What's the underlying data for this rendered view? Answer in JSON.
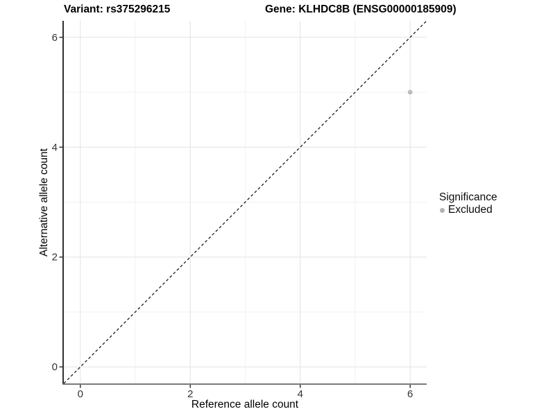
{
  "titles": {
    "variant": "Variant: rs375296215",
    "gene": "Gene: KLHDC8B (ENSG00000185909)"
  },
  "chart_data": {
    "type": "scatter",
    "title_left": "Variant: rs375296215",
    "title_right": "Gene: KLHDC8B (ENSG00000185909)",
    "xlabel": "Reference allele count",
    "ylabel": "Alternative allele count",
    "xlim": [
      -0.3,
      6.3
    ],
    "ylim": [
      -0.3,
      6.3
    ],
    "x_ticks": [
      0,
      2,
      4,
      6
    ],
    "y_ticks": [
      0,
      2,
      4,
      6
    ],
    "x_minor_ticks": [
      1,
      3,
      5
    ],
    "y_minor_ticks": [
      1,
      3,
      5
    ],
    "grid": "on",
    "reference_line": {
      "kind": "identity",
      "slope": 1,
      "intercept": 0,
      "style": "dashed",
      "color": "#1a1a1a"
    },
    "series": [
      {
        "name": "Excluded",
        "marker": "circle",
        "color": "#bcbcbc",
        "points": [
          {
            "x": 6,
            "y": 5
          }
        ]
      }
    ],
    "legend": {
      "position": "right",
      "title": "Significance",
      "items": [
        {
          "label": "Excluded",
          "marker": "circle",
          "color": "#b3b3b3"
        }
      ]
    }
  },
  "colors": {
    "background": "#ffffff",
    "grid_major": "#e7e7e7",
    "grid_minor": "#f1f1f1",
    "axis_line_left": "#2f2f2f",
    "axis_line_bottom": "#7a7a7a",
    "tick_mark": "#333333",
    "tick_label": "#333333",
    "point": "#bcbcbc"
  }
}
